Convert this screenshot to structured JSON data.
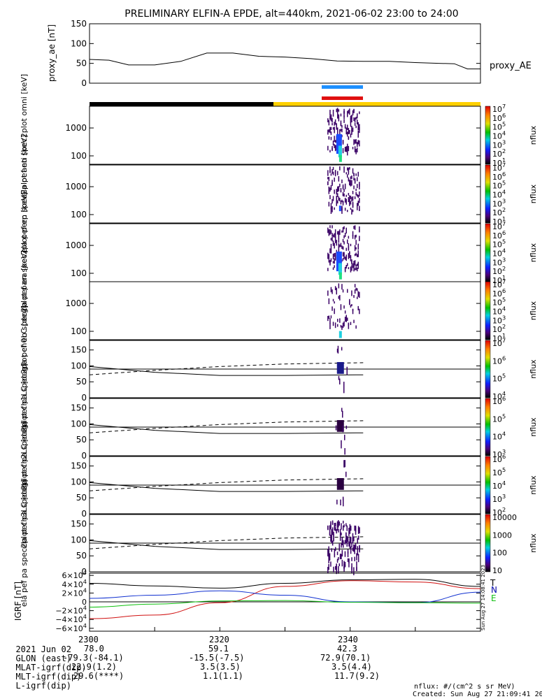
{
  "title": "PRELIMINARY ELFIN-A EPDE, alt=440km, 2021-06-02 23:00 to 24:00",
  "ae_panel": {
    "ylabel": "proxy_ae [nT]",
    "yticks": [
      "150",
      "100",
      "50",
      "0"
    ],
    "legend": "proxy_AE"
  },
  "spec_panels": [
    {
      "ylabel": "ela pef en spec2plot omni [keV]",
      "yticks": [
        "1000",
        "100"
      ],
      "cbar_label": "nflux",
      "cbar_ticks": [
        "10^7",
        "10^6",
        "10^5",
        "10^4",
        "10^3",
        "10^2",
        "10^1"
      ]
    },
    {
      "ylabel": "ela pef en spec2plot anti [keV]",
      "yticks": [
        "1000",
        "100"
      ],
      "cbar_label": "nflux",
      "cbar_ticks": [
        "10^7",
        "10^6",
        "10^5",
        "10^4",
        "10^3",
        "10^2",
        "10^1"
      ]
    },
    {
      "ylabel": "ela pef en spec2plot perp [keV]",
      "yticks": [
        "1000",
        "100"
      ],
      "cbar_label": "nflux",
      "cbar_ticks": [
        "10^7",
        "10^6",
        "10^5",
        "10^4",
        "10^3",
        "10^2",
        "10^1"
      ]
    },
    {
      "ylabel": "ela pef en spec2plot para [keV]",
      "yticks": [
        "1000",
        "100"
      ],
      "cbar_label": "nflux",
      "cbar_ticks": [
        "10^7",
        "10^6",
        "10^5",
        "10^4",
        "10^3",
        "10^2",
        "10^1"
      ]
    }
  ],
  "pa_panels": [
    {
      "ylabel": "ela pef pa spec2plot ch0LC [deg]",
      "yticks": [
        "150",
        "100",
        "50",
        "0"
      ],
      "cbar_label": "nflux",
      "cbar_ticks": [
        "10^7",
        "10^6",
        "10^5",
        "10^4"
      ]
    },
    {
      "ylabel": "ela pef pa spec2plot ch1LC [deg]",
      "yticks": [
        "150",
        "100",
        "50",
        "0"
      ],
      "cbar_label": "nflux",
      "cbar_ticks": [
        "10^6",
        "10^5",
        "10^4",
        "10^3"
      ]
    },
    {
      "ylabel": "ela pef pa spec2plot ch2LC [deg]",
      "yticks": [
        "150",
        "100",
        "50",
        "0"
      ],
      "cbar_label": "nflux",
      "cbar_ticks": [
        "10^6",
        "10^5",
        "10^4",
        "10^3",
        "10^2"
      ]
    },
    {
      "ylabel": "ela pef pa spec2plot ch3LC [deg]",
      "yticks": [
        "150",
        "100",
        "50",
        "0"
      ],
      "cbar_label": "nflux",
      "cbar_ticks": [
        "10000",
        "1000",
        "100",
        "10"
      ]
    }
  ],
  "igrf_panel": {
    "ylabel": "IGRF [nT]",
    "yticks": [
      "6×10^4",
      "4×10^4",
      "2×10^4",
      "0",
      "−2×10^4",
      "−4×10^4",
      "−6×10^4"
    ],
    "legend": [
      {
        "name": "T",
        "color": "#000000"
      },
      {
        "name": "N",
        "color": "#d01010"
      },
      {
        "name": "N",
        "color": "#1030d0"
      },
      {
        "name": "E",
        "color": "#10c010"
      }
    ]
  },
  "side_stamp": "Sun Aug 27 14:08:41 2023",
  "footer": {
    "rows": [
      {
        "label": "2021 Jun 02",
        "values": [
          "2300",
          "2320",
          "2340"
        ]
      },
      {
        "label": "GLON (east)",
        "values": [
          "78.0",
          "59.1",
          "42.3"
        ]
      },
      {
        "label": "MLAT-igrf(dip)",
        "values": [
          "-79.3(-84.1)",
          "-15.5(-7.5)",
          "72.9(70.1)"
        ]
      },
      {
        "label": "MLT-igrf(dip)",
        "values": [
          "22.9(1.2)",
          "3.5(3.5)",
          "3.5(4.4)"
        ]
      },
      {
        "label": "L-igrf(dip)",
        "values": [
          "29.6(****)",
          "1.1(1.1)",
          "11.7(9.2)"
        ]
      }
    ],
    "units": "nflux: #/(cm^2 s sr MeV)",
    "created": "Created: Sun Aug 27 21:09:41 2023"
  },
  "chart_data": [
    {
      "type": "line",
      "title": "proxy_ae",
      "ylabel": "proxy_ae [nT]",
      "ylim": [
        0,
        150
      ],
      "x": [
        2300,
        2303,
        2306,
        2310,
        2314,
        2318,
        2322,
        2326,
        2330,
        2334,
        2338,
        2342,
        2346,
        2350,
        2354,
        2356,
        2358,
        2400
      ],
      "series": [
        {
          "name": "proxy_AE",
          "values": [
            60,
            58,
            46,
            46,
            55,
            76,
            76,
            68,
            66,
            62,
            56,
            55,
            55,
            52,
            50,
            49,
            36,
            36
          ]
        }
      ]
    },
    {
      "type": "heatmap",
      "title": "omni",
      "ylabel": "ela pef en spec2plot omni [keV]",
      "yscale": "log",
      "ylim": [
        50,
        6000
      ],
      "x_range": [
        2336.5,
        2341.5
      ],
      "cmap_range": [
        10,
        10000000
      ]
    },
    {
      "type": "heatmap",
      "title": "anti",
      "ylabel": "ela pef en spec2plot anti [keV]",
      "yscale": "log",
      "ylim": [
        50,
        6000
      ],
      "x_range": [
        2336.5,
        2341.5
      ],
      "cmap_range": [
        10,
        10000000
      ]
    },
    {
      "type": "heatmap",
      "title": "perp",
      "ylabel": "ela pef en spec2plot perp [keV]",
      "yscale": "log",
      "ylim": [
        50,
        6000
      ],
      "x_range": [
        2336.5,
        2341.5
      ],
      "cmap_range": [
        10,
        10000000
      ]
    },
    {
      "type": "heatmap",
      "title": "para",
      "ylabel": "ela pef en spec2plot para [keV]",
      "yscale": "log",
      "ylim": [
        50,
        6000
      ],
      "x_range": [
        2336.5,
        2341.5
      ],
      "cmap_range": [
        10,
        10000000
      ]
    },
    {
      "type": "heatmap",
      "title": "ch0LC",
      "ylabel": "ela pef pa spec2plot ch0LC [deg]",
      "ylim": [
        0,
        180
      ],
      "x_range": [
        2336.5,
        2341.5
      ],
      "series": [
        {
          "name": "loss cone (solid)",
          "x": [
            2300,
            2310,
            2320,
            2330,
            2342
          ],
          "values": [
            98,
            80,
            70,
            70,
            72
          ]
        },
        {
          "name": "anti loss cone (dashed)",
          "x": [
            2300,
            2310,
            2320,
            2330,
            2342
          ],
          "values": [
            72,
            86,
            98,
            106,
            110
          ]
        },
        {
          "name": "90 deg",
          "x": [
            2300,
            2400
          ],
          "values": [
            90,
            90
          ]
        }
      ]
    },
    {
      "type": "heatmap",
      "title": "ch1LC",
      "ylabel": "ela pef pa spec2plot ch1LC [deg]",
      "ylim": [
        0,
        180
      ],
      "x_range": [
        2336.5,
        2341.5
      ]
    },
    {
      "type": "heatmap",
      "title": "ch2LC",
      "ylabel": "ela pef pa spec2plot ch2LC [deg]",
      "ylim": [
        0,
        180
      ],
      "x_range": [
        2336.5,
        2341.5
      ]
    },
    {
      "type": "heatmap",
      "title": "ch3LC",
      "ylabel": "ela pef pa spec2plot ch3LC [deg]",
      "ylim": [
        0,
        180
      ],
      "x_range": [
        2336.5,
        2341.5
      ]
    },
    {
      "type": "line",
      "title": "IGRF",
      "ylabel": "IGRF [nT]",
      "ylim": [
        -65000,
        65000
      ],
      "x": [
        2300,
        2310,
        2320,
        2330,
        2340,
        2350,
        2400
      ],
      "series": [
        {
          "name": "T",
          "values": [
            42000,
            36000,
            31000,
            42000,
            50000,
            51000,
            35000
          ]
        },
        {
          "name": "N",
          "values": [
            -38000,
            -30000,
            -2000,
            35000,
            48000,
            45000,
            30000
          ]
        },
        {
          "name": "N",
          "values": [
            8000,
            15000,
            25000,
            15000,
            0,
            -2000,
            22000
          ]
        },
        {
          "name": "E",
          "values": [
            -12000,
            -5000,
            2000,
            3000,
            -1000,
            -2000,
            -3000
          ]
        }
      ]
    }
  ]
}
